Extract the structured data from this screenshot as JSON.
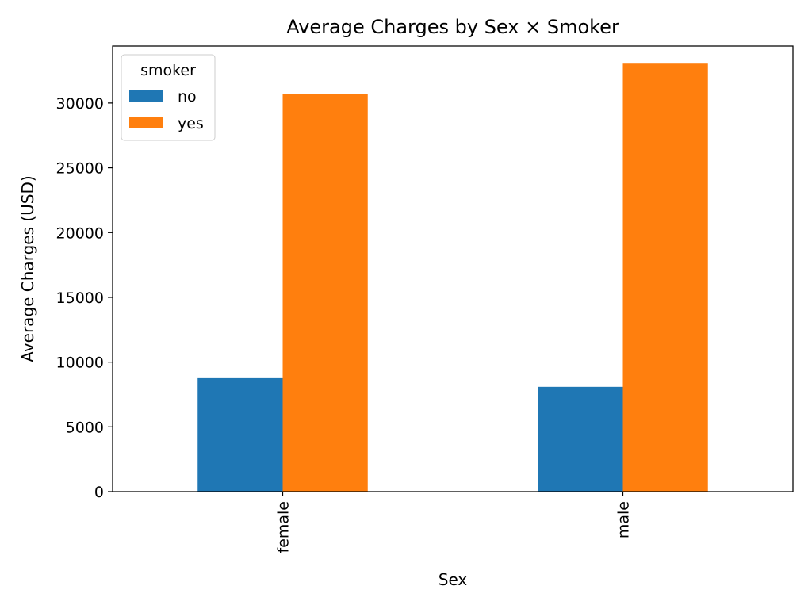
{
  "chart_data": {
    "type": "bar",
    "title": "Average Charges by Sex × Smoker",
    "xlabel": "Sex",
    "ylabel": "Average Charges (USD)",
    "categories": [
      "female",
      "male"
    ],
    "series": [
      {
        "name": "no",
        "values": [
          8760,
          8090
        ]
      },
      {
        "name": "yes",
        "values": [
          30680,
          33040
        ]
      }
    ],
    "ylim": [
      0,
      34400
    ],
    "yticks": [
      0,
      5000,
      10000,
      15000,
      20000,
      25000,
      30000
    ],
    "ytick_labels": [
      "0",
      "5000",
      "10000",
      "15000",
      "20000",
      "25000",
      "30000"
    ],
    "grid": false,
    "legend": {
      "title": "smoker",
      "placement": "top-left"
    },
    "colors": [
      "#1f77b4",
      "#ff7f0e"
    ]
  }
}
